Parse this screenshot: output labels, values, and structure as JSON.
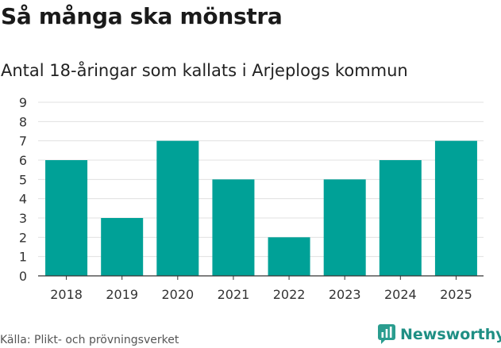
{
  "title": "Så många ska mönstra",
  "subtitle": "Antal 18-åringar som kallats i Arjeplogs kommun",
  "source": "Källa: Plikt- och prövningsverket",
  "brand": {
    "name": "Newsworthy",
    "icon": "newsworthy-logo-icon",
    "color": "#2a9d8f"
  },
  "colors": {
    "bar": "#00a197",
    "grid": "#e0e0e0",
    "axis": "#333333"
  },
  "chart_data": {
    "type": "bar",
    "title": "Så många ska mönstra",
    "subtitle": "Antal 18-åringar som kallats i Arjeplogs kommun",
    "categories": [
      "2018",
      "2019",
      "2020",
      "2021",
      "2022",
      "2023",
      "2024",
      "2025"
    ],
    "values": [
      6,
      3,
      7,
      5,
      2,
      5,
      6,
      7
    ],
    "xlabel": "",
    "ylabel": "",
    "ylim": [
      0,
      9
    ],
    "yticks": [
      0,
      1,
      2,
      3,
      4,
      5,
      6,
      7,
      8,
      9
    ],
    "grid": true,
    "legend": "none"
  }
}
